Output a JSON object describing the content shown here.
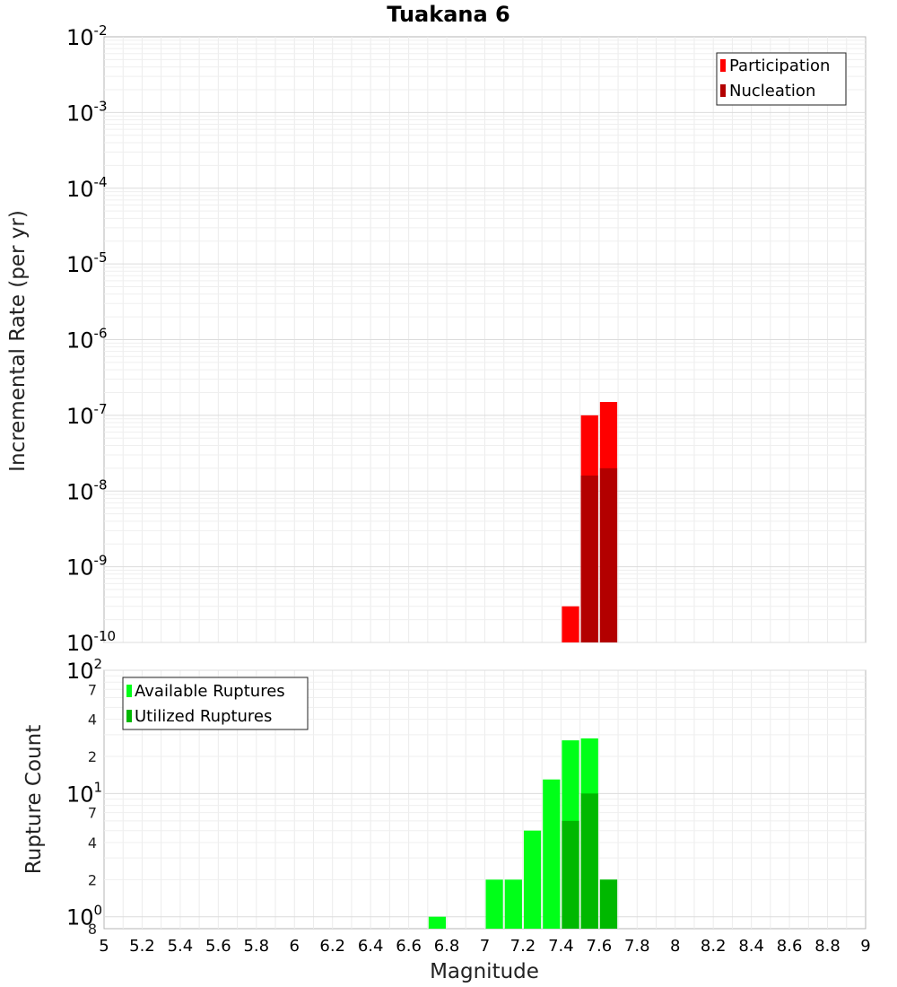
{
  "chart_data": [
    {
      "type": "bar",
      "title": "Tuakana 6",
      "xlabel": "",
      "ylabel": "Incremental Rate (per yr)",
      "xlim": [
        5,
        9
      ],
      "ylim": [
        1e-10,
        0.01
      ],
      "yscale": "log",
      "bin_width": 0.1,
      "y_tick_labels": [
        {
          "base": "10",
          "exp": "-2"
        },
        {
          "base": "10",
          "exp": "-3"
        },
        {
          "base": "10",
          "exp": "-4"
        },
        {
          "base": "10",
          "exp": "-5"
        },
        {
          "base": "10",
          "exp": "-6"
        },
        {
          "base": "10",
          "exp": "-7"
        },
        {
          "base": "10",
          "exp": "-8"
        },
        {
          "base": "10",
          "exp": "-9"
        },
        {
          "base": "10",
          "exp": "-10"
        }
      ],
      "legend_position": "top-right",
      "series": [
        {
          "name": "Participation",
          "color": "#ff0000",
          "x": [
            7.45,
            7.55,
            7.65
          ],
          "values": [
            3e-10,
            1e-07,
            1.5e-07
          ]
        },
        {
          "name": "Nucleation",
          "color": "#b30000",
          "x": [
            7.55,
            7.65
          ],
          "values": [
            1.6e-08,
            2e-08
          ]
        }
      ],
      "grid": true
    },
    {
      "type": "bar",
      "title": "",
      "xlabel": "Magnitude",
      "ylabel": "Rupture Count",
      "xlim": [
        5,
        9
      ],
      "ylim": [
        0.8,
        100
      ],
      "yscale": "log",
      "bin_width": 0.1,
      "x_tick_labels": [
        "5",
        "5.2",
        "5.4",
        "5.6",
        "5.8",
        "6",
        "6.2",
        "6.4",
        "6.6",
        "6.8",
        "7",
        "7.2",
        "7.4",
        "7.6",
        "7.8",
        "8",
        "8.2",
        "8.4",
        "8.6",
        "8.8",
        "9"
      ],
      "y_tick_labels": [
        {
          "base": "10",
          "exp": "2"
        },
        {
          "base": "10",
          "exp": "1"
        },
        {
          "base": "10",
          "exp": "0"
        }
      ],
      "y_minor_labels": [
        "7",
        "4",
        "2",
        "7",
        "4",
        "2",
        "8"
      ],
      "legend_position": "top-left",
      "series": [
        {
          "name": "Available Ruptures",
          "color": "#00ff18",
          "x": [
            6.75,
            7.05,
            7.15,
            7.25,
            7.35,
            7.45,
            7.55,
            7.65
          ],
          "values": [
            1,
            2,
            2,
            5,
            13,
            27,
            28,
            2
          ]
        },
        {
          "name": "Utilized Ruptures",
          "color": "#00b800",
          "x": [
            7.45,
            7.55,
            7.65
          ],
          "values": [
            6,
            10,
            2
          ]
        }
      ],
      "grid": true
    }
  ]
}
